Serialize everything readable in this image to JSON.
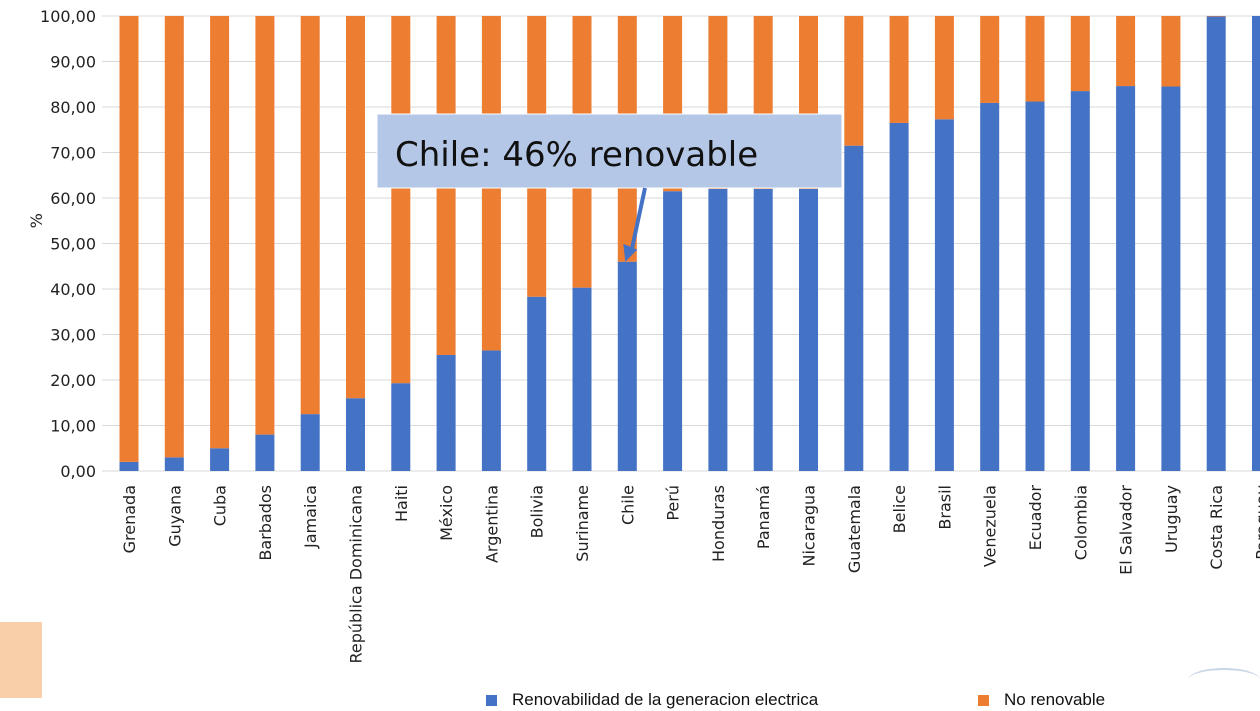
{
  "chart_data": {
    "type": "bar",
    "stacked": true,
    "categories": [
      "Grenada",
      "Guyana",
      "Cuba",
      "Barbados",
      "Jamaica",
      "República Dominicana",
      "Haiti",
      "México",
      "Argentina",
      "Bolivia",
      "Suriname",
      "Chile",
      "Perú",
      "Honduras",
      "Panamá",
      "Nicaragua",
      "Guatemala",
      "Belice",
      "Brasil",
      "Venezuela",
      "Ecuador",
      "Colombia",
      "El Salvador",
      "Uruguay",
      "Costa Rica",
      "Paraguay"
    ],
    "series": [
      {
        "name": "Renovabilidad de la generacion electrica",
        "color": "#4472c4",
        "values": [
          2,
          3,
          5,
          8,
          12.5,
          16,
          19.3,
          25.5,
          26.5,
          38.3,
          40.3,
          46,
          61.5,
          62,
          62,
          62,
          71.5,
          76.5,
          77.3,
          80.9,
          81.2,
          83.5,
          84.6,
          84.5,
          99.9,
          100
        ]
      },
      {
        "name": "No renovable",
        "color": "#ed7d31",
        "values": [
          98,
          97,
          95,
          92,
          87.5,
          84,
          80.7,
          74.5,
          73.5,
          61.7,
          59.7,
          54,
          38.5,
          38,
          38,
          38,
          28.5,
          23.5,
          22.7,
          19.1,
          18.8,
          16.5,
          15.4,
          15.5,
          0.1,
          0
        ]
      }
    ],
    "ylabel": "%",
    "xlabel": "",
    "ylim": [
      0,
      100
    ],
    "yticks": [
      "0,00",
      "10,00",
      "20,00",
      "30,00",
      "40,00",
      "50,00",
      "60,00",
      "70,00",
      "80,00",
      "90,00",
      "100,00"
    ],
    "grid": true,
    "legend_position": "bottom",
    "annotation": {
      "text": "Chile: 46% renovable",
      "target_category": "Chile",
      "target_value": 46
    }
  }
}
